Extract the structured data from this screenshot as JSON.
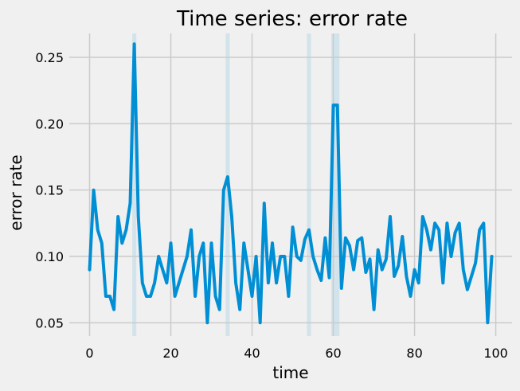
{
  "chart_data": {
    "type": "line",
    "title": "Time series: error rate",
    "xlabel": "time",
    "ylabel": "error rate",
    "xlim": [
      -5,
      104
    ],
    "ylim": [
      0.04,
      0.268
    ],
    "xticks": [
      0,
      20,
      40,
      60,
      80,
      100
    ],
    "yticks": [
      0.05,
      0.1,
      0.15,
      0.2,
      0.25
    ],
    "ytick_labels": [
      "0.05",
      "0.10",
      "0.15",
      "0.20",
      "0.25"
    ],
    "grid": true,
    "line_color": "#008fd5",
    "highlight_color": "#b9d8e8",
    "highlight_x": [
      11,
      34,
      54,
      60,
      61
    ],
    "series": [
      {
        "x": [
          0,
          1,
          2,
          3,
          4,
          5,
          6,
          7,
          8,
          9,
          10,
          11,
          12,
          13,
          14,
          15,
          16,
          17,
          18,
          19,
          20,
          21,
          22,
          23,
          24,
          25,
          26,
          27,
          28,
          29,
          30,
          31,
          32,
          33,
          34,
          35,
          36,
          37,
          38,
          39,
          40,
          41,
          42,
          43,
          44,
          45,
          46,
          47,
          48,
          49,
          50,
          51,
          52,
          53,
          54,
          55,
          56,
          57,
          58,
          59,
          60,
          61,
          62,
          63,
          64,
          65,
          66,
          67,
          68,
          69,
          70,
          71,
          72,
          73,
          74,
          75,
          76,
          77,
          78,
          79,
          80,
          81,
          82,
          83,
          84,
          85,
          86,
          87,
          88,
          89,
          90,
          91,
          92,
          93,
          94,
          95,
          96,
          97,
          98,
          99
        ],
        "values": [
          0.09,
          0.15,
          0.12,
          0.11,
          0.07,
          0.07,
          0.06,
          0.13,
          0.11,
          0.12,
          0.14,
          0.26,
          0.13,
          0.08,
          0.07,
          0.07,
          0.08,
          0.1,
          0.09,
          0.08,
          0.11,
          0.07,
          0.08,
          0.09,
          0.1,
          0.12,
          0.07,
          0.1,
          0.11,
          0.05,
          0.11,
          0.07,
          0.06,
          0.15,
          0.16,
          0.13,
          0.08,
          0.06,
          0.11,
          0.09,
          0.07,
          0.1,
          0.05,
          0.14,
          0.08,
          0.11,
          0.08,
          0.1,
          0.1,
          0.07,
          0.122,
          0.1,
          0.097,
          0.113,
          0.12,
          0.1,
          0.09,
          0.082,
          0.114,
          0.084,
          0.214,
          0.214,
          0.076,
          0.114,
          0.108,
          0.09,
          0.112,
          0.114,
          0.088,
          0.098,
          0.06,
          0.105,
          0.09,
          0.098,
          0.13,
          0.085,
          0.093,
          0.115,
          0.085,
          0.07,
          0.09,
          0.08,
          0.13,
          0.12,
          0.105,
          0.125,
          0.12,
          0.08,
          0.125,
          0.1,
          0.118,
          0.125,
          0.09,
          0.075,
          0.085,
          0.095,
          0.12,
          0.125,
          0.05,
          0.1
        ]
      }
    ]
  }
}
